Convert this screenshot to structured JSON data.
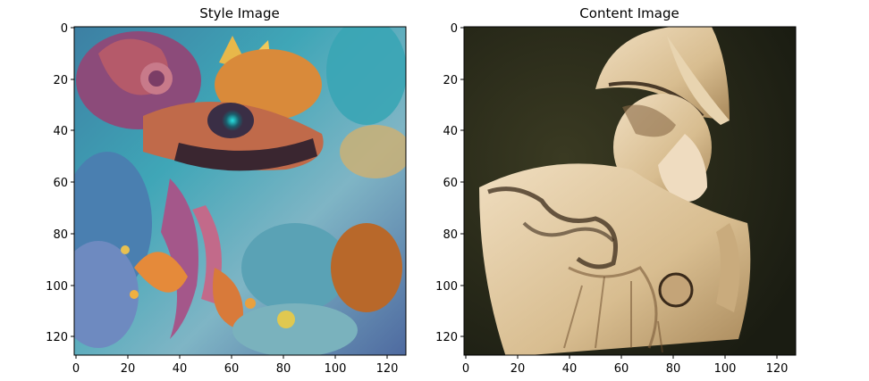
{
  "figure": {
    "panels": [
      {
        "title": "Style Image",
        "x_ticks": [
          "0",
          "20",
          "40",
          "60",
          "80",
          "100",
          "120"
        ],
        "y_ticks": [
          "0",
          "20",
          "40",
          "60",
          "80",
          "100",
          "120"
        ],
        "x_range": [
          0,
          127
        ],
        "y_range": [
          0,
          127
        ],
        "image_description_icon": "psychedelic-dragon-painting-icon"
      },
      {
        "title": "Content Image",
        "x_ticks": [
          "0",
          "20",
          "40",
          "60",
          "80",
          "100",
          "120"
        ],
        "y_ticks": [
          "0",
          "20",
          "40",
          "60",
          "80",
          "100",
          "120"
        ],
        "x_range": [
          0,
          127
        ],
        "y_range": [
          0,
          127
        ],
        "image_description_icon": "marble-bust-athena-icon"
      }
    ]
  }
}
